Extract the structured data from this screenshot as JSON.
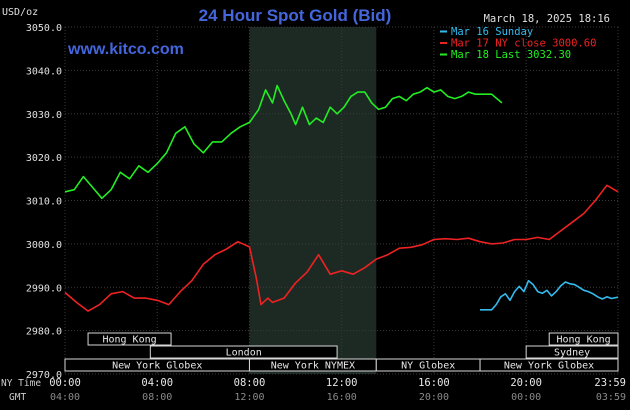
{
  "header": {
    "title": "24 Hour Spot Gold (Bid)",
    "unit": "USD/oz",
    "timestamp": "March 18, 2025 18:16",
    "site": "www.kitco.com"
  },
  "legend": [
    {
      "label": "Mar 16 Sunday",
      "color": "#33bbee"
    },
    {
      "label": "Mar 17 NY close 3000.60",
      "color": "#ee2222"
    },
    {
      "label": "Mar 18 Last 3032.30",
      "color": "#22ee22"
    }
  ],
  "axis": {
    "y_ticks": [
      "3050.0",
      "3040.0",
      "3030.0",
      "3020.0",
      "3010.0",
      "3000.0",
      "2990.0",
      "2980.0",
      "2970.0"
    ],
    "x_row1_label": "NY Time",
    "x_row2_label": "GMT",
    "x_ny": [
      "00:00",
      "04:00",
      "08:00",
      "12:00",
      "16:00",
      "20:00",
      "23:59"
    ],
    "x_gmt": [
      "04:00",
      "08:00",
      "12:00",
      "16:00",
      "20:00",
      "00:00",
      "03:59"
    ]
  },
  "sessions": [
    {
      "label": "Hong Kong",
      "row": 0,
      "start": 1.0,
      "end": 4.6
    },
    {
      "label": "London",
      "row": 1,
      "start": 3.7,
      "end": 11.8
    },
    {
      "label": "New York Globex",
      "row": 2,
      "start": 0.0,
      "end": 8.0
    },
    {
      "label": "New York NYMEX",
      "row": 2,
      "start": 8.0,
      "end": 13.5
    },
    {
      "label": "NY Globex",
      "row": 2,
      "start": 13.5,
      "end": 18.0
    },
    {
      "label": "Hong Kong",
      "row": 0,
      "start": 21.0,
      "end": 23.983
    },
    {
      "label": "Sydney",
      "row": 1,
      "start": 20.0,
      "end": 23.983
    },
    {
      "label": "New York Globex",
      "row": 2,
      "start": 18.0,
      "end": 23.983
    }
  ],
  "chart_data": {
    "type": "line",
    "title": "24 Hour Spot Gold (Bid)",
    "ylabel": "USD/oz",
    "xlabel": "NY Time",
    "ylim": [
      2970,
      3050
    ],
    "xlim": [
      0,
      23.983
    ],
    "shaded_x_range": [
      8.0,
      13.5
    ],
    "grid": true,
    "series": [
      {
        "name": "Mar 16 Sunday",
        "color": "#33bbee",
        "x": [
          18.0,
          18.5,
          18.7,
          18.9,
          19.1,
          19.3,
          19.5,
          19.7,
          19.9,
          20.1,
          20.3,
          20.5,
          20.7,
          20.9,
          21.1,
          21.3,
          21.5,
          21.7,
          21.9,
          22.1,
          22.3,
          22.5,
          22.7,
          22.9,
          23.1,
          23.3,
          23.5,
          23.7,
          23.983
        ],
        "y": [
          2984.8,
          2984.8,
          2986.0,
          2987.8,
          2988.5,
          2987.0,
          2989.0,
          2990.2,
          2989.0,
          2991.5,
          2990.6,
          2989.0,
          2988.6,
          2989.3,
          2988.0,
          2989.0,
          2990.3,
          2991.2,
          2990.8,
          2990.6,
          2990.0,
          2989.3,
          2989.0,
          2988.5,
          2987.8,
          2987.3,
          2987.8,
          2987.4,
          2987.7
        ]
      },
      {
        "name": "Mar 17 NY close 3000.60",
        "color": "#ee2222",
        "x": [
          0.0,
          0.5,
          1.0,
          1.5,
          2.0,
          2.5,
          3.0,
          3.5,
          4.0,
          4.5,
          5.0,
          5.5,
          6.0,
          6.5,
          7.0,
          7.5,
          8.0,
          8.3,
          8.5,
          8.8,
          9.0,
          9.5,
          10.0,
          10.5,
          11.0,
          11.5,
          12.0,
          12.5,
          13.0,
          13.5,
          14.0,
          14.5,
          15.0,
          15.5,
          16.0,
          16.5,
          17.0,
          17.5,
          18.0,
          18.5,
          19.0,
          19.5,
          20.0,
          20.5,
          21.0,
          21.5,
          22.0,
          22.5,
          23.0,
          23.5,
          23.983
        ],
        "y": [
          2988.8,
          2986.5,
          2984.5,
          2986.0,
          2988.5,
          2989.0,
          2987.5,
          2987.5,
          2987.0,
          2986.0,
          2989.0,
          2991.5,
          2995.3,
          2997.5,
          2998.8,
          3000.5,
          2999.3,
          2992.0,
          2986.0,
          2987.5,
          2986.5,
          2987.5,
          2991.0,
          2993.5,
          2997.5,
          2993.0,
          2993.8,
          2993.0,
          2994.5,
          2996.5,
          2997.5,
          2999.0,
          2999.2,
          2999.8,
          3001.0,
          3001.2,
          3001.0,
          3001.3,
          3000.5,
          3000.0,
          3000.2,
          3001.0,
          3001.0,
          3001.5,
          3001.0,
          3003.0,
          3005.0,
          3007.0,
          3010.0,
          3013.5,
          3012.0
        ]
      },
      {
        "name": "Mar 18 Last 3032.30",
        "color": "#22ee22",
        "x": [
          0.0,
          0.4,
          0.8,
          1.2,
          1.6,
          2.0,
          2.4,
          2.8,
          3.2,
          3.6,
          4.0,
          4.4,
          4.8,
          5.2,
          5.6,
          6.0,
          6.4,
          6.8,
          7.2,
          7.6,
          8.0,
          8.4,
          8.7,
          9.0,
          9.2,
          9.5,
          9.8,
          10.0,
          10.3,
          10.6,
          10.9,
          11.2,
          11.5,
          11.8,
          12.1,
          12.4,
          12.7,
          13.0,
          13.3,
          13.6,
          13.9,
          14.2,
          14.5,
          14.8,
          15.1,
          15.4,
          15.7,
          16.0,
          16.3,
          16.6,
          16.9,
          17.2,
          17.5,
          17.8,
          18.0,
          18.5,
          18.95
        ],
        "y": [
          3012.0,
          3012.5,
          3015.5,
          3013.0,
          3010.5,
          3012.5,
          3016.5,
          3015.0,
          3018.0,
          3016.5,
          3018.5,
          3021.0,
          3025.5,
          3027.0,
          3023.0,
          3021.0,
          3023.5,
          3023.5,
          3025.5,
          3027.0,
          3028.0,
          3031.0,
          3035.5,
          3032.5,
          3036.5,
          3033.0,
          3030.0,
          3027.5,
          3031.5,
          3027.5,
          3029.0,
          3028.0,
          3031.5,
          3030.0,
          3031.5,
          3034.0,
          3035.0,
          3035.0,
          3032.5,
          3031.0,
          3031.5,
          3033.5,
          3034.0,
          3033.0,
          3034.5,
          3035.0,
          3036.0,
          3035.0,
          3035.5,
          3034.0,
          3033.5,
          3034.0,
          3035.0,
          3034.5,
          3034.5,
          3034.5,
          3032.5
        ]
      }
    ]
  }
}
